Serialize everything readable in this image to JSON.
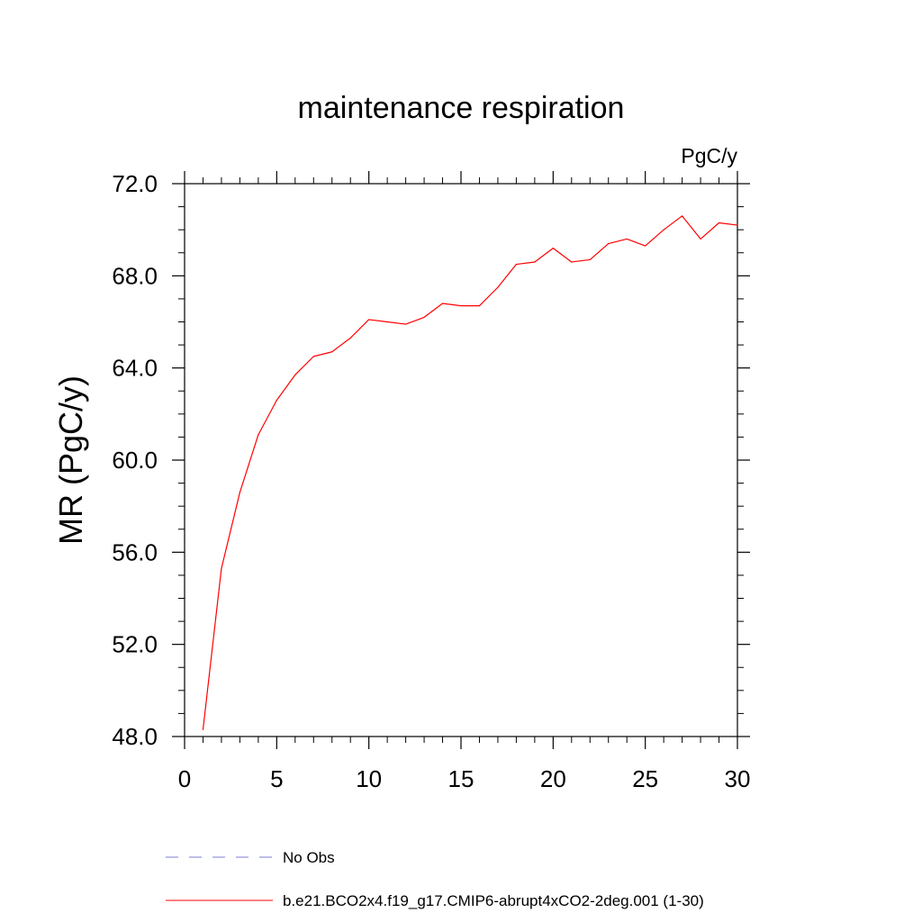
{
  "chart_data": {
    "type": "line",
    "title": "maintenance respiration",
    "units_label": "PgC/y",
    "xlabel": "",
    "ylabel": "MR  (PgC/y)",
    "xlim": [
      0,
      30
    ],
    "ylim": [
      48,
      72
    ],
    "x_ticks": [
      0,
      5,
      10,
      15,
      20,
      25,
      30
    ],
    "x_tick_labels": [
      "0",
      "5",
      "10",
      "15",
      "20",
      "25",
      "30"
    ],
    "y_ticks": [
      48,
      52,
      56,
      60,
      64,
      68,
      72
    ],
    "y_tick_labels": [
      "48.0",
      "52.0",
      "56.0",
      "60.0",
      "64.0",
      "68.0",
      "72.0"
    ],
    "grid": false,
    "series": [
      {
        "name": "b.e21.BCO2x4.f19_g17.CMIP6-abrupt4xCO2-2deg.001 (1-30)",
        "color": "#ff0000",
        "style": "solid",
        "x": [
          1,
          2,
          3,
          4,
          5,
          6,
          7,
          8,
          9,
          10,
          11,
          12,
          13,
          14,
          15,
          16,
          17,
          18,
          19,
          20,
          21,
          22,
          23,
          24,
          25,
          26,
          27,
          28,
          29,
          30
        ],
        "values": [
          48.3,
          55.3,
          58.6,
          61.1,
          62.6,
          63.7,
          64.5,
          64.7,
          65.3,
          66.1,
          66.0,
          65.9,
          66.2,
          66.8,
          66.7,
          66.7,
          67.5,
          68.5,
          68.6,
          69.2,
          68.6,
          68.7,
          69.4,
          69.6,
          69.3,
          70.0,
          70.6,
          69.6,
          70.3,
          70.2
        ]
      }
    ],
    "legend": [
      {
        "label": "No Obs",
        "color": "#7b7bd6",
        "style": "dashed"
      },
      {
        "label": "b.e21.BCO2x4.f19_g17.CMIP6-abrupt4xCO2-2deg.001 (1-30)",
        "color": "#ff0000",
        "style": "solid"
      }
    ],
    "legend_position": "bottom"
  }
}
